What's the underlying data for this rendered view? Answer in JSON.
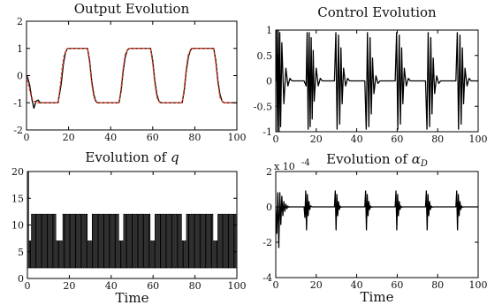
{
  "chart_data": [
    {
      "id": "output",
      "type": "line",
      "title": "Output Evolution",
      "xlabel": "",
      "ylabel": "",
      "xlim": [
        0,
        100
      ],
      "ylim": [
        -2,
        2
      ],
      "xticks": [
        "0",
        "20",
        "40",
        "60",
        "80",
        "100"
      ],
      "yticks": [
        "-2",
        "-1",
        "0",
        "1",
        "2"
      ],
      "series": [
        {
          "style": "solid",
          "color": "#000000",
          "x": [
            0,
            0.5,
            1.5,
            2.5,
            3.5,
            4.5,
            5.5,
            6.5,
            8,
            12,
            15,
            16.5,
            17.5,
            18.5,
            19.5,
            29,
            30,
            31,
            32,
            33,
            34,
            44,
            45,
            46,
            47,
            48,
            49,
            59,
            60,
            61,
            62,
            63,
            64,
            74,
            75,
            76,
            77,
            78,
            79,
            89,
            90,
            91,
            92,
            93,
            94,
            100
          ],
          "y": [
            0,
            -0.05,
            -0.35,
            -0.85,
            -1.2,
            -0.95,
            -0.9,
            -1.0,
            -1.0,
            -1.0,
            -1.0,
            -0.3,
            0.4,
            0.85,
            1.0,
            1.0,
            0.55,
            -0.2,
            -0.7,
            -0.95,
            -1.0,
            -1.0,
            -0.55,
            0.2,
            0.7,
            0.95,
            1.0,
            1.0,
            0.55,
            -0.2,
            -0.7,
            -0.95,
            -1.0,
            -1.0,
            -0.55,
            0.2,
            0.7,
            0.95,
            1.0,
            1.0,
            0.55,
            -0.2,
            -0.7,
            -0.95,
            -1.0,
            -1.0
          ]
        },
        {
          "style": "dashed",
          "color": "#e03a1e",
          "x": [
            0,
            1,
            2,
            3,
            4.5,
            15,
            16,
            17,
            18,
            19.5,
            29,
            30,
            31,
            32,
            33.5,
            44,
            45,
            46,
            47,
            48.5,
            59,
            60,
            61,
            62,
            63.5,
            74,
            75,
            76,
            77,
            78.5,
            89,
            90,
            91,
            92,
            93.5,
            100
          ],
          "y": [
            0,
            -0.35,
            -0.7,
            -0.9,
            -1.0,
            -1.0,
            -0.4,
            0.3,
            0.8,
            1.0,
            1.0,
            0.45,
            -0.3,
            -0.8,
            -1.0,
            -1.0,
            -0.45,
            0.3,
            0.8,
            1.0,
            1.0,
            0.45,
            -0.3,
            -0.8,
            -1.0,
            -1.0,
            -0.45,
            0.3,
            0.8,
            1.0,
            1.0,
            0.45,
            -0.3,
            -0.8,
            -1.0,
            -1.0
          ]
        }
      ]
    },
    {
      "id": "control",
      "type": "line",
      "title": "Control Evolution",
      "xlabel": "",
      "ylabel": "",
      "xlim": [
        0,
        100
      ],
      "ylim": [
        -1,
        1
      ],
      "xticks": [
        "0",
        "20",
        "40",
        "60",
        "80",
        "100"
      ],
      "yticks": [
        "-1",
        "-0.5",
        "0",
        "0.5",
        "1"
      ],
      "series": [
        {
          "style": "solid",
          "color": "#000000",
          "x": [
            0,
            0.4,
            0.8,
            1.2,
            1.6,
            2.0,
            2.4,
            3,
            4,
            5,
            6,
            7,
            8,
            9,
            10,
            12,
            14,
            15,
            15.5,
            16,
            16.5,
            17,
            17.5,
            18,
            18.5,
            19,
            20,
            21,
            22,
            23,
            24,
            26,
            29,
            29.7,
            30.3,
            31,
            31.6,
            32.2,
            32.8,
            33.5,
            34.5,
            35.5,
            36.5,
            38,
            41,
            44,
            44.7,
            45.3,
            46,
            46.6,
            47.2,
            47.8,
            48.5,
            49.5,
            50.5,
            51.5,
            53,
            56,
            59,
            59.7,
            60.3,
            61,
            61.6,
            62.2,
            62.8,
            63.5,
            64.5,
            65.5,
            66.5,
            68,
            71,
            74,
            74.7,
            75.3,
            76,
            76.6,
            77.2,
            77.8,
            78.5,
            79.5,
            80.5,
            81.5,
            83,
            86,
            89,
            89.7,
            90.3,
            91,
            91.6,
            92.2,
            92.8,
            93.5,
            94.5,
            95.5,
            96.5,
            98,
            100
          ],
          "y": [
            0,
            1,
            -1,
            1,
            -1,
            0.95,
            -0.9,
            0.75,
            -0.45,
            0.25,
            -0.1,
            0.05,
            0,
            0,
            0,
            0,
            0,
            -0.1,
            0.95,
            -0.95,
            0.95,
            -0.9,
            0.85,
            -0.75,
            0.6,
            -0.4,
            0.25,
            -0.1,
            0.05,
            0,
            0,
            0,
            0,
            0.95,
            -0.95,
            0.9,
            -0.85,
            0.65,
            -0.45,
            0.25,
            -0.1,
            0.05,
            0,
            0,
            0,
            0,
            -0.95,
            0.95,
            -0.9,
            0.85,
            -0.65,
            0.45,
            -0.25,
            0.1,
            -0.05,
            0,
            0,
            0,
            0,
            0.95,
            -0.95,
            0.9,
            -0.85,
            0.65,
            -0.45,
            0.25,
            -0.1,
            0.05,
            0,
            0,
            0,
            0,
            -0.95,
            0.95,
            -0.9,
            0.85,
            -0.65,
            0.45,
            -0.25,
            0.1,
            -0.05,
            0,
            0,
            0,
            0,
            0.95,
            -0.95,
            0.9,
            -0.85,
            0.65,
            -0.45,
            0.25,
            -0.1,
            0.05,
            0,
            0,
            0
          ]
        }
      ]
    },
    {
      "id": "q",
      "type": "line",
      "title": "Evolution of ",
      "title_math": "q",
      "xlabel": "Time",
      "ylabel": "",
      "xlim": [
        0,
        100
      ],
      "ylim": [
        0,
        20
      ],
      "xticks": [
        "0",
        "20",
        "40",
        "60",
        "80",
        "100"
      ],
      "yticks": [
        "0",
        "5",
        "10",
        "15",
        "20"
      ],
      "pattern": {
        "initial_spike": 20,
        "levels": [
          2,
          7,
          12
        ],
        "high_segments": [
          [
            2,
            14
          ],
          [
            17,
            29
          ],
          [
            31,
            44
          ],
          [
            46,
            59
          ],
          [
            61,
            74
          ],
          [
            76,
            89
          ],
          [
            91,
            100
          ]
        ],
        "period": 1.0
      }
    },
    {
      "id": "alpha",
      "type": "line",
      "title": "Evolution of ",
      "title_math": "α",
      "title_sub": "D",
      "xlabel": "Time",
      "ylabel": "",
      "xlim": [
        0,
        100
      ],
      "ylim": [
        -4,
        2
      ],
      "exponent_label": "x 10",
      "exponent_power": "-4",
      "xticks": [
        "0",
        "20",
        "40",
        "60",
        "80",
        "100"
      ],
      "yticks": [
        "-4",
        "-2",
        "0",
        "2"
      ],
      "series": [
        {
          "style": "solid",
          "color": "#000000",
          "x": [
            0,
            0.5,
            1.0,
            1.5,
            2.0,
            2.5,
            3.0,
            3.5,
            4.0,
            4.5,
            5.0,
            5.5,
            6.0,
            6.5,
            7.0,
            8,
            14,
            14.4,
            14.8,
            15.2,
            15.6,
            16.0,
            16.4,
            16.8,
            17.2,
            18,
            29,
            29.4,
            29.8,
            30.2,
            30.6,
            31.0,
            31.4,
            31.8,
            32.2,
            33,
            44,
            44.4,
            44.8,
            45.2,
            45.6,
            46.0,
            46.4,
            46.8,
            47.2,
            48,
            59,
            59.4,
            59.8,
            60.2,
            60.6,
            61.0,
            61.4,
            61.8,
            62.2,
            63,
            74,
            74.4,
            74.8,
            75.2,
            75.6,
            76.0,
            76.4,
            76.8,
            77.2,
            78,
            89,
            89.4,
            89.8,
            90.2,
            90.6,
            91.0,
            91.4,
            91.8,
            92.2,
            93,
            100
          ],
          "y": [
            0,
            -1.5,
            0.8,
            -2.3,
            0.8,
            -1.0,
            0.6,
            -0.5,
            0.3,
            -0.25,
            0.15,
            -0.1,
            0.05,
            -0.02,
            0,
            0,
            0,
            -0.6,
            0.9,
            -1.3,
            0.7,
            -0.5,
            0.3,
            -0.15,
            0.05,
            0,
            0,
            0.9,
            -1.3,
            0.7,
            -0.5,
            0.3,
            -0.15,
            0.05,
            -0.02,
            0,
            0,
            0.9,
            -1.3,
            0.7,
            -0.5,
            0.3,
            -0.15,
            0.05,
            -0.02,
            0,
            0,
            0.9,
            -1.3,
            0.7,
            -0.5,
            0.3,
            -0.15,
            0.05,
            -0.02,
            0,
            0,
            0.9,
            -1.3,
            0.7,
            -0.5,
            0.3,
            -0.15,
            0.05,
            -0.02,
            0,
            0,
            0.9,
            -1.3,
            0.7,
            -0.5,
            0.3,
            -0.15,
            0.05,
            -0.02,
            0,
            0
          ]
        }
      ]
    }
  ]
}
